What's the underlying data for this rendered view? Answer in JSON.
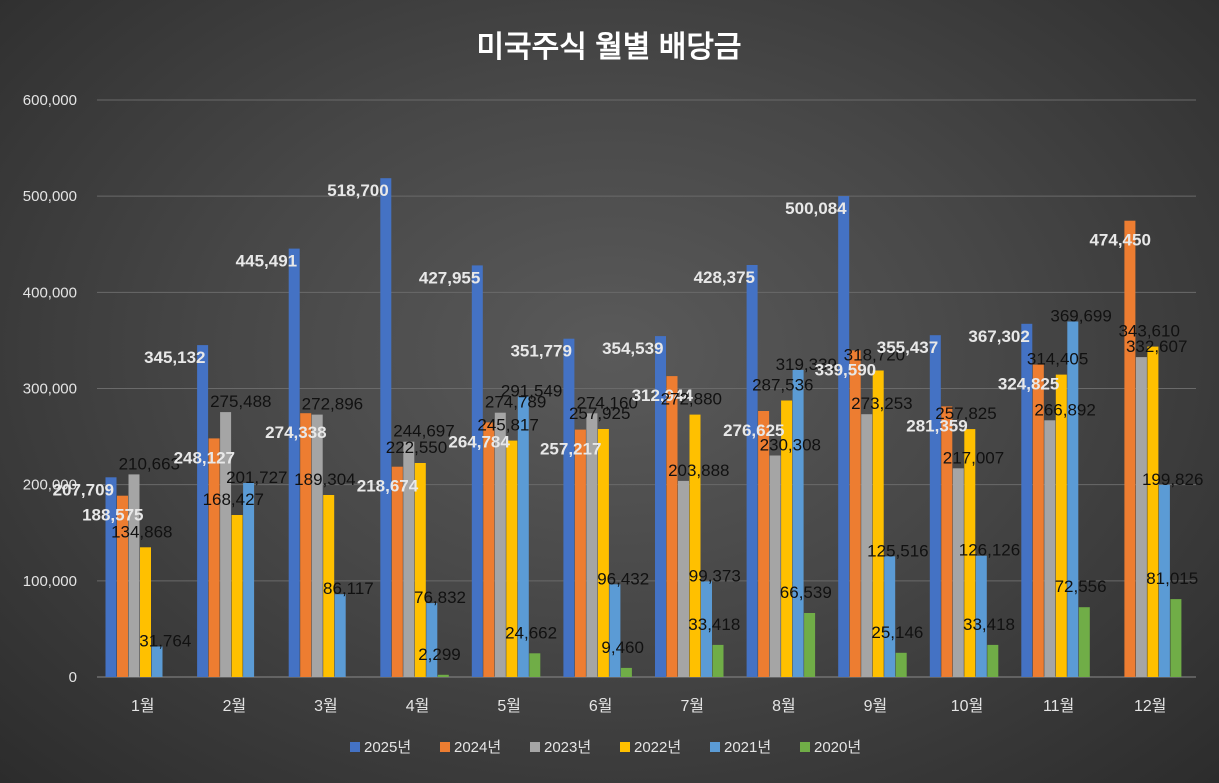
{
  "chart_data": {
    "type": "bar",
    "title": "미국주식 월별 배당금",
    "xlabel": "",
    "ylabel": "",
    "ylim": [
      0,
      600000
    ],
    "yticks": [
      0,
      100000,
      200000,
      300000,
      400000,
      500000,
      600000
    ],
    "ytick_labels": [
      "0",
      "100,000",
      "200,000",
      "300,000",
      "400,000",
      "500,000",
      "600,000"
    ],
    "grid": true,
    "legend_position": "bottom",
    "categories": [
      "1월",
      "2월",
      "3월",
      "4월",
      "5월",
      "6월",
      "7월",
      "8월",
      "9월",
      "10월",
      "11월",
      "12월"
    ],
    "series": [
      {
        "name": "2025년",
        "color": "#4472C4",
        "values": [
          207709,
          345132,
          445491,
          518700,
          427955,
          351779,
          354539,
          428375,
          500084,
          355437,
          367302,
          null
        ],
        "labels": [
          "207,709",
          "345,132",
          "445,491",
          "518,700",
          "427,955",
          "351,779",
          "354,539",
          "428,375",
          "500,084",
          "355,437",
          "367,302",
          ""
        ]
      },
      {
        "name": "2024년",
        "color": "#ED7D31",
        "values": [
          188575,
          248127,
          274338,
          218674,
          264784,
          257217,
          312944,
          276625,
          339590,
          281359,
          324825,
          474450
        ],
        "labels": [
          "188,575",
          "248,127",
          "274,338",
          "218,674",
          "264,784",
          "257,217",
          "312,944",
          "276,625",
          "339,590",
          "281,359",
          "324,825",
          "474,450"
        ]
      },
      {
        "name": "2023년",
        "color": "#A5A5A5",
        "values": [
          210663,
          275488,
          272896,
          244697,
          274789,
          274160,
          203888,
          230308,
          273253,
          217007,
          266892,
          332607
        ],
        "labels": [
          "210,663",
          "275,488",
          "272,896",
          "244,697",
          "274,789",
          "274,160",
          "203,888",
          "230,308",
          "273,253",
          "217,007",
          "266,892",
          "332,607"
        ]
      },
      {
        "name": "2022년",
        "color": "#FFC000",
        "values": [
          134868,
          168427,
          189304,
          222550,
          245817,
          257925,
          272880,
          287536,
          318720,
          257825,
          314405,
          343610
        ],
        "labels": [
          "134,868",
          "168,427",
          "189,304",
          "222,550",
          "245,817",
          "257,925",
          "272,880",
          "287,536",
          "318,720",
          "257,825",
          "314,405",
          "343,610"
        ]
      },
      {
        "name": "2021년",
        "color": "#5B9BD5",
        "values": [
          31764,
          201727,
          86117,
          76832,
          291549,
          96432,
          99373,
          319339,
          125516,
          126126,
          369699,
          199826
        ],
        "labels": [
          "31,764",
          "201,727",
          "86,117",
          "76,832",
          "291,549",
          "96,432",
          "99,373",
          "319,339",
          "125,516",
          "126,126",
          "369,699",
          "199,826"
        ]
      },
      {
        "name": "2020년",
        "color": "#70AD47",
        "values": [
          null,
          null,
          null,
          2299,
          24662,
          9460,
          33418,
          66539,
          25146,
          33418,
          72556,
          81015
        ],
        "labels": [
          "",
          "",
          "",
          "2,299",
          "24,662",
          "9,460",
          "33,418",
          "66,539",
          "25,146",
          "33,418",
          "72,556",
          "81,015"
        ]
      }
    ]
  }
}
